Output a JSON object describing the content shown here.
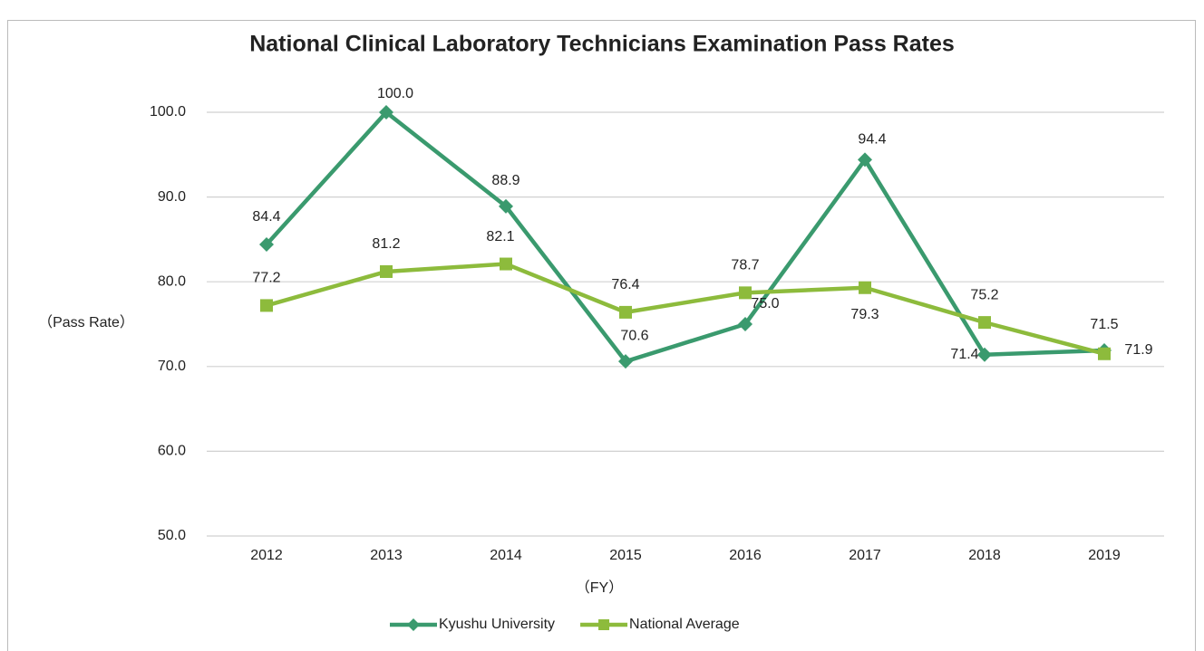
{
  "chart_data": {
    "type": "line",
    "title": "National Clinical Laboratory Technicians Examination Pass Rates",
    "y_label": "（Pass Rate）",
    "x_label": "（FY）",
    "categories": [
      "2012",
      "2013",
      "2014",
      "2015",
      "2016",
      "2017",
      "2018",
      "2019"
    ],
    "series": [
      {
        "name": "Kyushu University",
        "color": "#3a9a6e",
        "marker": "diamond",
        "values": [
          84.4,
          100,
          88.9,
          70.6,
          75,
          94.4,
          71.4,
          71.9
        ],
        "value_labels": [
          "84.4",
          "100.0",
          "88.9",
          "70.6",
          "75.0",
          "94.4",
          "71.4",
          "71.9"
        ]
      },
      {
        "name": "National Average",
        "color": "#8dbb3c",
        "marker": "square",
        "values": [
          77.2,
          81.2,
          82.1,
          76.4,
          78.7,
          79.3,
          75.2,
          71.5
        ],
        "value_labels": [
          "77.2",
          "81.2",
          "82.1",
          "76.4",
          "78.7",
          "79.3",
          "75.2",
          "71.5"
        ]
      }
    ],
    "ylim": [
      50,
      100
    ],
    "yticks": [
      {
        "value": 50,
        "label": "50.0"
      },
      {
        "value": 60,
        "label": "60.0"
      },
      {
        "value": 70,
        "label": "70.0"
      },
      {
        "value": 80,
        "label": "80.0"
      },
      {
        "value": 90,
        "label": "90.0"
      },
      {
        "value": 100,
        "label": "100.0"
      }
    ],
    "grid": true,
    "legend": "bottom"
  }
}
